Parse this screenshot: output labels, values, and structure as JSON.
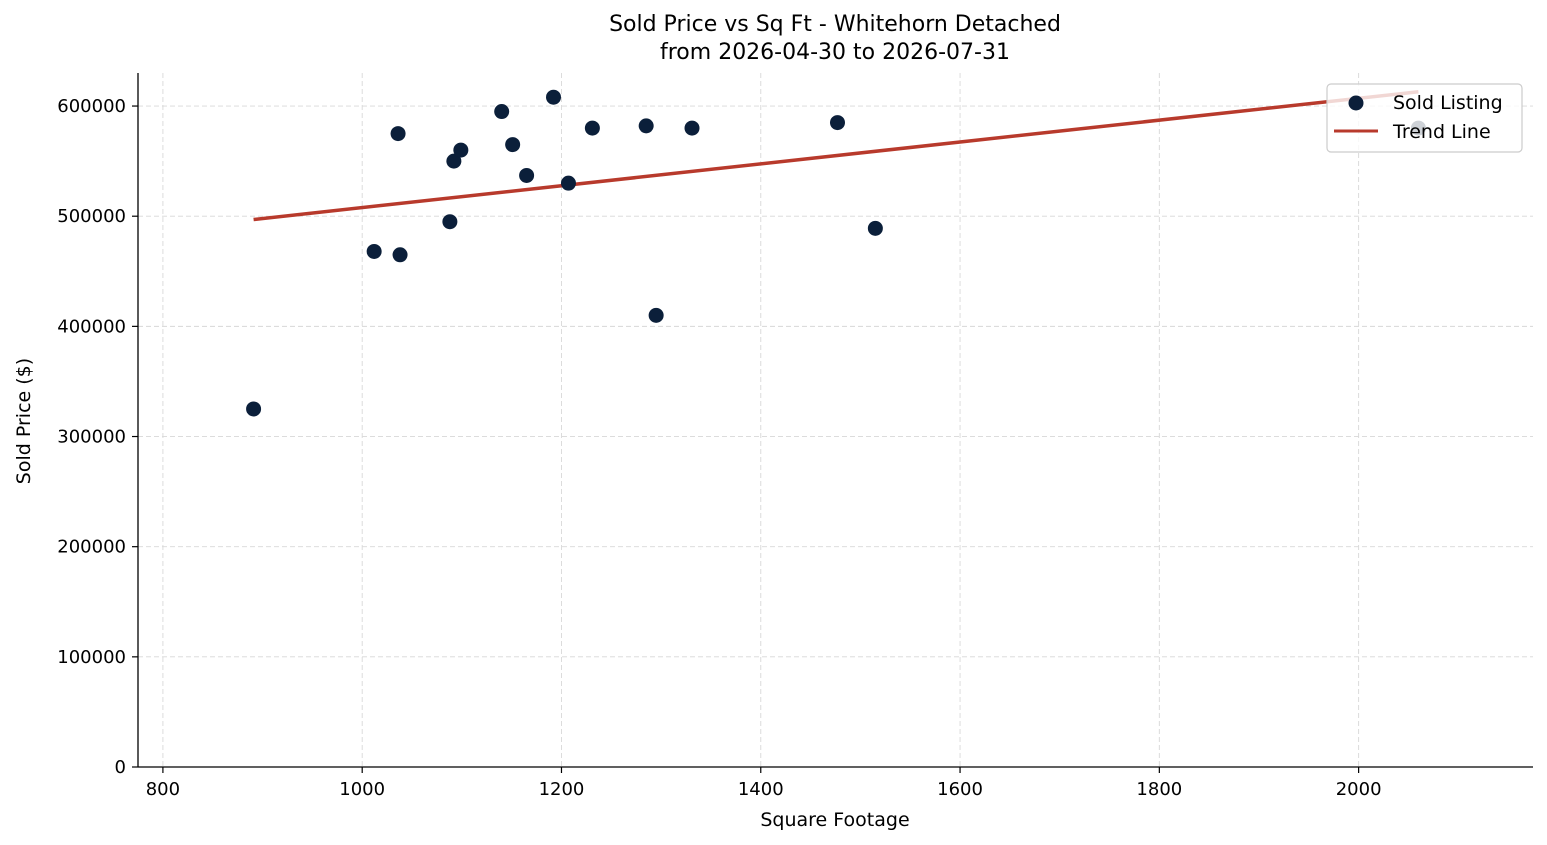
{
  "chart_data": {
    "type": "scatter",
    "title": "Sold Price vs Sq Ft - Whitehorn Detached",
    "subtitle": "from 2026-04-30 to 2026-07-31",
    "xlabel": "Square Footage",
    "ylabel": "Sold Price ($)",
    "xlim": [
      775,
      2175
    ],
    "ylim": [
      0,
      630000
    ],
    "xticks": [
      800,
      1000,
      1200,
      1400,
      1600,
      1800,
      2000
    ],
    "yticks": [
      0,
      100000,
      200000,
      300000,
      400000,
      500000,
      600000
    ],
    "grid": true,
    "legend_position": "top-right",
    "colors": {
      "points": "#0b1f3a",
      "trend": "#b83a2c",
      "grid": "#d8d8d8"
    },
    "series": [
      {
        "name": "Sold Listing",
        "kind": "scatter",
        "points": [
          {
            "x": 891,
            "y": 325000
          },
          {
            "x": 1012,
            "y": 468000
          },
          {
            "x": 1036,
            "y": 575000
          },
          {
            "x": 1038,
            "y": 465000
          },
          {
            "x": 1088,
            "y": 495000
          },
          {
            "x": 1092,
            "y": 550000
          },
          {
            "x": 1099,
            "y": 560000
          },
          {
            "x": 1140,
            "y": 595000
          },
          {
            "x": 1151,
            "y": 565000
          },
          {
            "x": 1165,
            "y": 537000
          },
          {
            "x": 1192,
            "y": 608000
          },
          {
            "x": 1207,
            "y": 530000
          },
          {
            "x": 1231,
            "y": 580000
          },
          {
            "x": 1285,
            "y": 582000
          },
          {
            "x": 1295,
            "y": 410000
          },
          {
            "x": 1331,
            "y": 580000
          },
          {
            "x": 1477,
            "y": 585000
          },
          {
            "x": 1515,
            "y": 489000
          },
          {
            "x": 2060,
            "y": 580000
          }
        ]
      },
      {
        "name": "Trend Line",
        "kind": "line",
        "points": [
          {
            "x": 891,
            "y": 497000
          },
          {
            "x": 2060,
            "y": 613000
          }
        ]
      }
    ]
  }
}
